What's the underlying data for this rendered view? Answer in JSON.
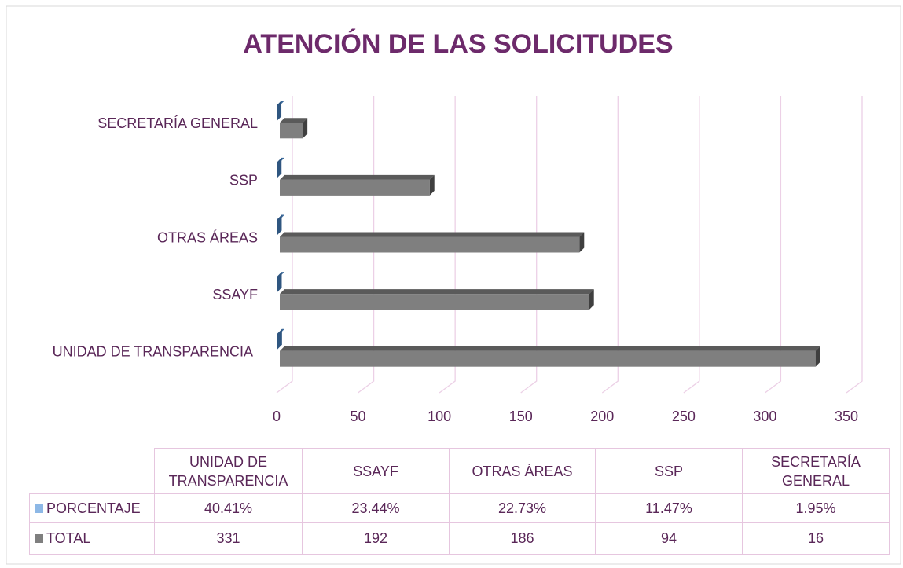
{
  "chart_data": {
    "type": "bar3d_horizontal",
    "title": "ATENCIÓN DE LAS SOLICITUDES",
    "categories": [
      "UNIDAD DE TRANSPARENCIA",
      "SSAYF",
      "OTRAS ÁREAS",
      "SSP",
      "SECRETARÍA GENERAL"
    ],
    "series": [
      {
        "name": "PORCENTAJE",
        "color": "#5b8fc7",
        "values": [
          0.4041,
          0.2344,
          0.2273,
          0.1147,
          0.0195
        ],
        "value_labels": [
          "40.41%",
          "23.44%",
          "22.73%",
          "11.47%",
          "1.95%"
        ]
      },
      {
        "name": "TOTAL",
        "color": "#7f7f7f",
        "values": [
          331,
          192,
          186,
          94,
          16
        ]
      }
    ],
    "xlim": [
      0,
      350
    ],
    "xticks": [
      0,
      50,
      100,
      150,
      200,
      250,
      300,
      350
    ],
    "grid": true,
    "legend": "table"
  }
}
